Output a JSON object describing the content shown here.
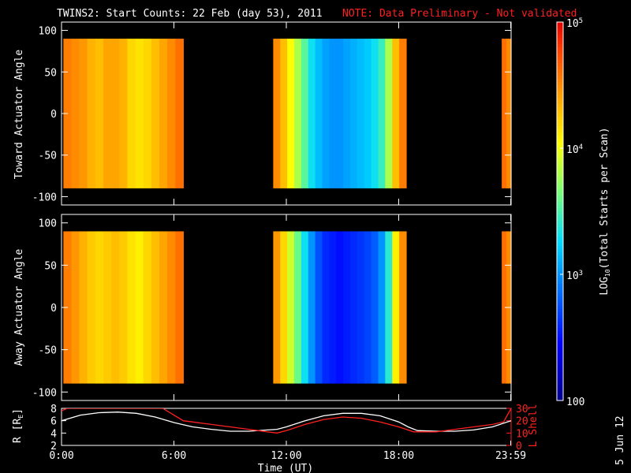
{
  "header": {
    "title": "TWINS2: Start Counts: 22 Feb (day  53), 2011",
    "note": "NOTE: Data Preliminary - Not validated"
  },
  "footer": {
    "date_stamp": "5 Jun 12"
  },
  "colors": {
    "background": "#000000",
    "axis": "#ffffff",
    "note": "#ff2020",
    "r_line": "#ffffff",
    "l_shell_line": "#ff2020"
  },
  "chart_data": [
    {
      "type": "heatmap",
      "title": "",
      "ylabel": "Toward Actuator Angle",
      "ylim": [
        -110,
        110
      ],
      "yticks": [
        -100,
        -50,
        0,
        50,
        100
      ],
      "xlim_hours": [
        0,
        24
      ],
      "x_tick_labels": [
        "0:00",
        "6:00",
        "12:00",
        "18:00",
        "23:59"
      ],
      "x_tick_hours": [
        0,
        6,
        12,
        18,
        23.98
      ],
      "angle_range": [
        -90,
        90
      ],
      "segments": [
        {
          "start_hour": 0.1,
          "end_hour": 6.5,
          "log10_counts": [
            4.55,
            4.5,
            4.45,
            4.35,
            4.3,
            4.4,
            4.4,
            4.35,
            4.2,
            4.15,
            4.2,
            4.3,
            4.4,
            4.5,
            4.6
          ]
        },
        {
          "start_hour": 11.3,
          "end_hour": 18.4,
          "log10_counts": [
            4.5,
            4.3,
            4.05,
            3.8,
            3.55,
            3.3,
            3.15,
            3.05,
            3.0,
            3.0,
            3.05,
            3.1,
            3.15,
            3.2,
            3.3,
            3.45,
            3.8,
            4.3,
            4.55
          ]
        },
        {
          "start_hour": 23.5,
          "end_hour": 24.0,
          "log10_counts": [
            4.6,
            4.5
          ]
        }
      ]
    },
    {
      "type": "heatmap",
      "title": "",
      "ylabel": "Away Actuator Angle",
      "ylim": [
        -110,
        110
      ],
      "yticks": [
        -100,
        -50,
        0,
        50,
        100
      ],
      "xlim_hours": [
        0,
        24
      ],
      "x_tick_labels": [
        "0:00",
        "6:00",
        "12:00",
        "18:00",
        "23:59"
      ],
      "x_tick_hours": [
        0,
        6,
        12,
        18,
        23.98
      ],
      "angle_range": [
        -90,
        90
      ],
      "segments": [
        {
          "start_hour": 0.1,
          "end_hour": 6.5,
          "log10_counts": [
            4.55,
            4.45,
            4.35,
            4.25,
            4.2,
            4.25,
            4.3,
            4.25,
            4.15,
            4.1,
            4.2,
            4.3,
            4.4,
            4.5,
            4.6
          ]
        },
        {
          "start_hour": 11.3,
          "end_hour": 18.4,
          "log10_counts": [
            4.45,
            4.2,
            3.9,
            3.6,
            3.3,
            3.0,
            2.75,
            2.6,
            2.55,
            2.5,
            2.55,
            2.6,
            2.65,
            2.7,
            2.8,
            3.0,
            3.4,
            4.1,
            4.5
          ]
        },
        {
          "start_hour": 23.5,
          "end_hour": 24.0,
          "log10_counts": [
            4.6,
            4.5
          ]
        }
      ]
    },
    {
      "type": "line",
      "title": "",
      "xlabel": "Time (UT)",
      "ylabel": "R [R",
      "ylabel_subscript": "E",
      "ylabel_suffix": "]",
      "ylim": [
        2,
        8
      ],
      "yticks": [
        2,
        4,
        6,
        8
      ],
      "y2label": "L Shell",
      "y2lim": [
        0,
        30
      ],
      "y2ticks": [
        0,
        10,
        20,
        30
      ],
      "xlim_hours": [
        0,
        24
      ],
      "x_tick_labels": [
        "0:00",
        "6:00",
        "12:00",
        "18:00",
        "23:59"
      ],
      "x_tick_hours": [
        0,
        6,
        12,
        18,
        23.98
      ],
      "series": [
        {
          "name": "R",
          "x": [
            0,
            1,
            2,
            3,
            4,
            5,
            6,
            7,
            8,
            9,
            10,
            11,
            11.5,
            12,
            13,
            14,
            15,
            16,
            17,
            18,
            18.5,
            19,
            20,
            21,
            22,
            23,
            24
          ],
          "y": [
            6.0,
            6.9,
            7.3,
            7.4,
            7.2,
            6.6,
            5.7,
            5.0,
            4.6,
            4.3,
            4.3,
            4.5,
            4.6,
            5.0,
            6.0,
            6.8,
            7.2,
            7.2,
            6.8,
            5.8,
            5.0,
            4.4,
            4.3,
            4.3,
            4.5,
            5.0,
            6.0
          ]
        },
        {
          "name": "L Shell",
          "x": [
            0,
            0.3,
            5.4,
            6.5,
            8,
            9,
            10,
            11,
            11.5,
            12,
            13,
            14,
            15,
            16,
            17,
            18,
            18.8,
            20,
            21,
            22,
            23,
            23.6,
            24
          ],
          "y": [
            28,
            30,
            30,
            20,
            17,
            15,
            13,
            11,
            10,
            12,
            17,
            21,
            23,
            22,
            19,
            15,
            11,
            11,
            13,
            15,
            17,
            19,
            30
          ]
        }
      ]
    }
  ],
  "colorbar": {
    "label_prefix": "LOG",
    "label_sub": "10",
    "label_suffix": "(Total Starts per Scan)",
    "range_log10": [
      2,
      5
    ],
    "tick_labels": [
      {
        "log10": 5,
        "base": "10",
        "exp": "5"
      },
      {
        "log10": 4,
        "base": "10",
        "exp": "4"
      },
      {
        "log10": 3,
        "base": "10",
        "exp": "3"
      },
      {
        "log10": 2,
        "base": "100",
        "exp": ""
      }
    ]
  }
}
